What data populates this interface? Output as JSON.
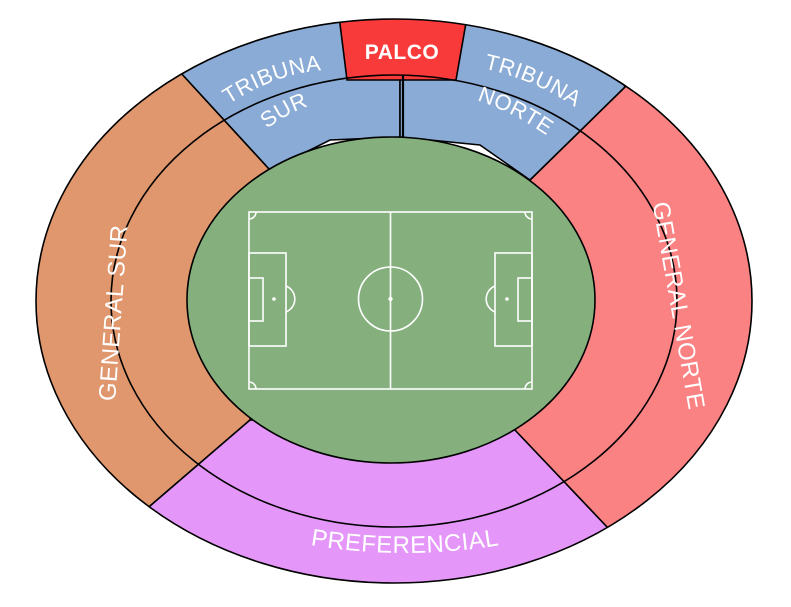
{
  "sections": {
    "palco": {
      "label": "PALCO",
      "color": "#f93a3a"
    },
    "tribuna_sur": {
      "line1": "TRIBUNA",
      "line2": "SUR",
      "color": "#8aabd6"
    },
    "tribuna_norte": {
      "line1": "TRIBUNA",
      "line2": "NORTE",
      "color": "#8aabd6"
    },
    "general_sur": {
      "label": "GENERAL SUR",
      "color": "#e0976d"
    },
    "general_norte": {
      "label": "GENERAL NORTE",
      "color": "#fb8282"
    },
    "preferencial": {
      "label": "PREFERENCIAL",
      "color": "#e497f9"
    }
  },
  "pitch": {
    "color": "#85b07e",
    "line_color": "#ffffff"
  }
}
